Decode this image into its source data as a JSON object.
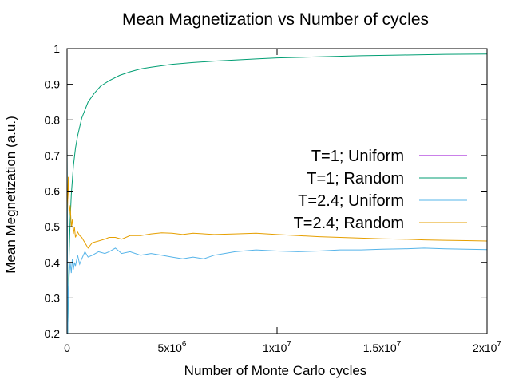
{
  "chart_data": {
    "type": "line",
    "title": "Mean Magnetization vs Number of cycles",
    "xlabel": "Number of Monte Carlo cycles",
    "ylabel": "Mean Megnetization (a.u.)",
    "xlim": [
      0,
      20000000
    ],
    "ylim": [
      0.2,
      1.0
    ],
    "grid": false,
    "legend_position": "right-center",
    "x_ticks": [
      {
        "value": 0,
        "base": "0",
        "exp": ""
      },
      {
        "value": 5000000,
        "base": "5x10",
        "exp": "6"
      },
      {
        "value": 10000000,
        "base": "1x10",
        "exp": "7"
      },
      {
        "value": 15000000,
        "base": "1.5x10",
        "exp": "7"
      },
      {
        "value": 20000000,
        "base": "2x10",
        "exp": "7"
      }
    ],
    "y_ticks": [
      {
        "value": 0.2,
        "label": "0.2"
      },
      {
        "value": 0.3,
        "label": "0.3"
      },
      {
        "value": 0.4,
        "label": "0.4"
      },
      {
        "value": 0.5,
        "label": "0.5"
      },
      {
        "value": 0.6,
        "label": "0.6"
      },
      {
        "value": 0.7,
        "label": "0.7"
      },
      {
        "value": 0.8,
        "label": "0.8"
      },
      {
        "value": 0.9,
        "label": "0.9"
      },
      {
        "value": 1.0,
        "label": "1"
      }
    ],
    "series": [
      {
        "name": "T=1; Uniform",
        "color": "#9400d3",
        "x": [
          0,
          20000000
        ],
        "y": [
          1.0,
          1.0
        ]
      },
      {
        "name": "T=1; Random",
        "color": "#009e73",
        "x": [
          0,
          30000,
          60000,
          100000,
          150000,
          200000,
          300000,
          400000,
          500000,
          700000,
          1000000,
          1300000,
          1600000,
          2000000,
          2500000,
          3000000,
          3500000,
          4000000,
          5000000,
          6000000,
          7000000,
          8000000,
          9000000,
          10000000,
          12000000,
          14000000,
          16000000,
          18000000,
          20000000
        ],
        "y": [
          0.73,
          0.2,
          0.3,
          0.42,
          0.52,
          0.59,
          0.67,
          0.72,
          0.755,
          0.805,
          0.85,
          0.875,
          0.895,
          0.91,
          0.925,
          0.935,
          0.943,
          0.948,
          0.956,
          0.961,
          0.965,
          0.968,
          0.971,
          0.974,
          0.977,
          0.98,
          0.982,
          0.984,
          0.985
        ]
      },
      {
        "name": "T=2.4; Uniform",
        "color": "#56b4e9",
        "x": [
          0,
          30000,
          60000,
          100000,
          150000,
          200000,
          250000,
          300000,
          350000,
          400000,
          500000,
          600000,
          700000,
          850000,
          1000000,
          1200000,
          1500000,
          1800000,
          2000000,
          2300000,
          2600000,
          3000000,
          3500000,
          4000000,
          4500000,
          5000000,
          5500000,
          6000000,
          6500000,
          7000000,
          7500000,
          8000000,
          9000000,
          10000000,
          11000000,
          12000000,
          13000000,
          14000000,
          15000000,
          16000000,
          17000000,
          18000000,
          19000000,
          20000000
        ],
        "y": [
          0.72,
          0.2,
          0.32,
          0.36,
          0.4,
          0.37,
          0.41,
          0.38,
          0.4,
          0.39,
          0.42,
          0.395,
          0.41,
          0.43,
          0.415,
          0.42,
          0.43,
          0.425,
          0.43,
          0.44,
          0.425,
          0.43,
          0.42,
          0.425,
          0.42,
          0.415,
          0.41,
          0.415,
          0.41,
          0.42,
          0.425,
          0.43,
          0.435,
          0.432,
          0.43,
          0.432,
          0.435,
          0.435,
          0.437,
          0.438,
          0.44,
          0.438,
          0.437,
          0.436
        ]
      },
      {
        "name": "T=2.4; Random",
        "color": "#e69f00",
        "x": [
          0,
          30000,
          60000,
          100000,
          150000,
          200000,
          250000,
          300000,
          350000,
          400000,
          500000,
          600000,
          700000,
          850000,
          1000000,
          1200000,
          1500000,
          1800000,
          2000000,
          2300000,
          2600000,
          3000000,
          3500000,
          4000000,
          4500000,
          5000000,
          5500000,
          6000000,
          7000000,
          8000000,
          9000000,
          10000000,
          11000000,
          12000000,
          13000000,
          14000000,
          15000000,
          16000000,
          17000000,
          18000000,
          19000000,
          20000000
        ],
        "y": [
          0.55,
          0.59,
          0.64,
          0.53,
          0.56,
          0.5,
          0.52,
          0.48,
          0.5,
          0.47,
          0.485,
          0.475,
          0.47,
          0.455,
          0.44,
          0.455,
          0.46,
          0.465,
          0.47,
          0.47,
          0.465,
          0.475,
          0.475,
          0.48,
          0.483,
          0.482,
          0.478,
          0.482,
          0.478,
          0.48,
          0.482,
          0.478,
          0.475,
          0.472,
          0.47,
          0.468,
          0.466,
          0.465,
          0.463,
          0.462,
          0.461,
          0.46
        ]
      }
    ]
  }
}
